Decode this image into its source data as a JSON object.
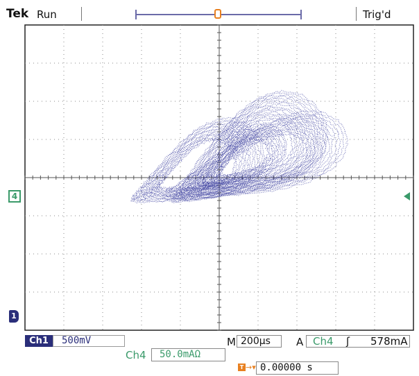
{
  "header": {
    "brand": "Tek",
    "acquisition_state": "Run",
    "trigger_state": "Trig'd",
    "trigger_marker": "T"
  },
  "colors": {
    "trace": "#2f3399",
    "grid": "#888888",
    "ch1": "#2a2e7a",
    "ch4": "#3a9a6a",
    "trigger": "#e88020"
  },
  "markers": {
    "ch4_ground": "4",
    "ch1_ground": "1"
  },
  "status": {
    "ch1_label": "Ch1",
    "ch1_scale": "500mV",
    "timebase_label": "M",
    "timebase": "200µs",
    "trigger_label": "A",
    "trigger_source": "Ch4",
    "trigger_slope": "ʃ",
    "trigger_level": "578mA",
    "ch4_label": "Ch4",
    "ch4_scale": "50.0mAΩ",
    "trigger_position_icon": "T",
    "trigger_position_arrow": "→▾",
    "trigger_position": "0.00000 s"
  },
  "chart_data": {
    "type": "scatter",
    "mode": "XY",
    "description_note": "",
    "x_divisions": 10,
    "y_divisions": 8,
    "x_channel": "Ch1",
    "y_channel": "Ch4",
    "xlim": [
      -5,
      5
    ],
    "ylim": [
      -4,
      4
    ],
    "loops": [
      {
        "cx": 0.7,
        "cy": 0.55,
        "rx": 2.3,
        "ry": 1.0,
        "rot": 0.55,
        "layers": 16
      },
      {
        "cx": 0.9,
        "cy": 0.35,
        "rx": 2.6,
        "ry": 0.8,
        "rot": 0.35,
        "layers": 12
      },
      {
        "cx": -0.6,
        "cy": 0.2,
        "rx": 1.9,
        "ry": 0.85,
        "rot": 0.45,
        "layers": 14
      },
      {
        "cx": 0.6,
        "cy": 0.45,
        "rx": 1.3,
        "ry": 0.55,
        "rot": 0.6,
        "layers": 10
      }
    ]
  }
}
